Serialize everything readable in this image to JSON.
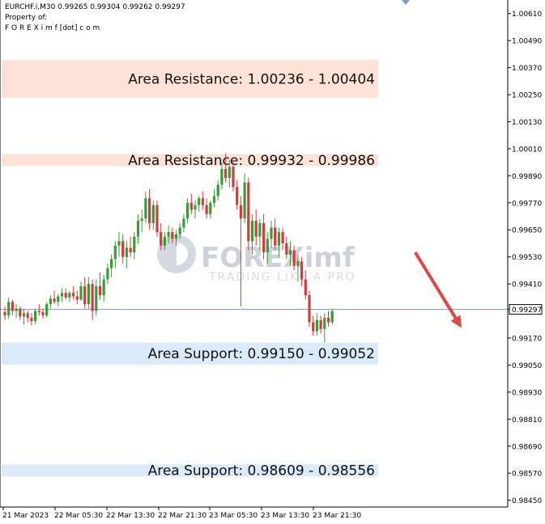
{
  "header": {
    "symbol_line": "EURCHF.i,M30  0.99265 0.99304 0.99262 0.99297",
    "property_line": "Property of:",
    "brand_line": "F O R E X i m f [dot] c o m"
  },
  "watermark": {
    "brand": "FOREXimf",
    "tagline": "TRADING LIKE A PRO"
  },
  "colors": {
    "bull": "#3a9b3a",
    "bear": "#d23c3c",
    "resistance_zone": "#fde2d7",
    "support_zone": "#dbeaf8",
    "current_price_line": "#7f96b2",
    "arrow": "#e04848"
  },
  "chart_data": {
    "type": "candlestick",
    "symbol": "EURCHF.i",
    "timeframe": "M30",
    "ylim": [
      0.9842,
      1.0067
    ],
    "y_ticks": [
      "1.00610",
      "1.00490",
      "1.00370",
      "1.00250",
      "1.00130",
      "1.00010",
      "0.99890",
      "0.99770",
      "0.99650",
      "0.99530",
      "0.99410",
      "0.99297",
      "0.99170",
      "0.99050",
      "0.98930",
      "0.98810",
      "0.98690",
      "0.98570",
      "0.98450"
    ],
    "x_ticks": [
      "21 Mar 2023",
      "22 Mar 05:30",
      "22 Mar 13:30",
      "22 Mar 21:30",
      "23 Mar 05:30",
      "23 Mar 13:30",
      "23 Mar 21:30"
    ],
    "current_price": 0.99297,
    "current_price_label": "0.99297",
    "zones": [
      {
        "type": "resistance",
        "label": "Area Resistance: 1.00236 - 1.00404",
        "low": 1.00236,
        "high": 1.00404
      },
      {
        "type": "resistance",
        "label": "Area Resistance: 0.99932 - 0.99986",
        "low": 0.99932,
        "high": 0.99986
      },
      {
        "type": "support",
        "label": "Area Support: 0.99150 - 0.99052",
        "low": 0.99052,
        "high": 0.9915
      },
      {
        "type": "support",
        "label": "Area Support: 0.98609 - 0.98556",
        "low": 0.98556,
        "high": 0.98609
      }
    ],
    "forecast_arrow": {
      "from": {
        "bar": 108,
        "price": 0.99545
      },
      "to": {
        "bar": 120,
        "price": 0.99215
      }
    },
    "candles": [
      [
        0.99285,
        0.9931,
        0.9925,
        0.9927
      ],
      [
        0.9927,
        0.9935,
        0.99255,
        0.9933
      ],
      [
        0.9933,
        0.9934,
        0.9927,
        0.9929
      ],
      [
        0.9929,
        0.9932,
        0.9926,
        0.993
      ],
      [
        0.993,
        0.9931,
        0.9925,
        0.99265
      ],
      [
        0.99265,
        0.993,
        0.9923,
        0.9928
      ],
      [
        0.9928,
        0.9929,
        0.9924,
        0.9926
      ],
      [
        0.9926,
        0.9928,
        0.99225,
        0.99245
      ],
      [
        0.99245,
        0.993,
        0.9923,
        0.9929
      ],
      [
        0.9929,
        0.9932,
        0.9927,
        0.99285
      ],
      [
        0.99285,
        0.993,
        0.99255,
        0.9927
      ],
      [
        0.9927,
        0.9933,
        0.9926,
        0.9932
      ],
      [
        0.9932,
        0.9936,
        0.993,
        0.99345
      ],
      [
        0.99345,
        0.9938,
        0.9932,
        0.9933
      ],
      [
        0.9933,
        0.99365,
        0.9931,
        0.99355
      ],
      [
        0.99355,
        0.9939,
        0.9933,
        0.9937
      ],
      [
        0.9937,
        0.9939,
        0.9934,
        0.9935
      ],
      [
        0.9935,
        0.9938,
        0.9933,
        0.9937
      ],
      [
        0.9937,
        0.994,
        0.9934,
        0.99355
      ],
      [
        0.99355,
        0.9938,
        0.9932,
        0.9934
      ],
      [
        0.9934,
        0.9942,
        0.99335,
        0.994
      ],
      [
        0.994,
        0.9944,
        0.993,
        0.9932
      ],
      [
        0.9932,
        0.9944,
        0.993,
        0.9941
      ],
      [
        0.9941,
        0.9943,
        0.9925,
        0.9929
      ],
      [
        0.9929,
        0.9943,
        0.9927,
        0.994
      ],
      [
        0.994,
        0.9946,
        0.9934,
        0.9936
      ],
      [
        0.9936,
        0.9945,
        0.9933,
        0.9943
      ],
      [
        0.9943,
        0.995,
        0.9941,
        0.9948
      ],
      [
        0.9948,
        0.9954,
        0.9944,
        0.9952
      ],
      [
        0.9952,
        0.996,
        0.9948,
        0.9958
      ],
      [
        0.9958,
        0.9964,
        0.9953,
        0.996
      ],
      [
        0.996,
        0.9963,
        0.995,
        0.9953
      ],
      [
        0.9953,
        0.996,
        0.9948,
        0.9957
      ],
      [
        0.9957,
        0.9962,
        0.9953,
        0.9955
      ],
      [
        0.9955,
        0.9964,
        0.9952,
        0.9962
      ],
      [
        0.9962,
        0.9972,
        0.9959,
        0.9969
      ],
      [
        0.9969,
        0.9974,
        0.9964,
        0.997
      ],
      [
        0.997,
        0.9982,
        0.9968,
        0.9979
      ],
      [
        0.9979,
        0.9983,
        0.9965,
        0.9968
      ],
      [
        0.9968,
        0.9978,
        0.9965,
        0.9976
      ],
      [
        0.9976,
        0.9978,
        0.9962,
        0.9964
      ],
      [
        0.9964,
        0.9968,
        0.9956,
        0.9958
      ],
      [
        0.9958,
        0.9964,
        0.9956,
        0.9962
      ],
      [
        0.9962,
        0.9967,
        0.9959,
        0.9964
      ],
      [
        0.9964,
        0.9966,
        0.9959,
        0.9961
      ],
      [
        0.9961,
        0.9965,
        0.9958,
        0.9963
      ],
      [
        0.9963,
        0.9968,
        0.9961,
        0.9966
      ],
      [
        0.9966,
        0.9972,
        0.9964,
        0.997
      ],
      [
        0.997,
        0.9979,
        0.9968,
        0.9977
      ],
      [
        0.9977,
        0.9981,
        0.9972,
        0.9974
      ],
      [
        0.9974,
        0.9978,
        0.997,
        0.9976
      ],
      [
        0.9976,
        0.998,
        0.9973,
        0.9979
      ],
      [
        0.9979,
        0.9982,
        0.9974,
        0.9976
      ],
      [
        0.9976,
        0.9979,
        0.997,
        0.9972
      ],
      [
        0.9972,
        0.9978,
        0.997,
        0.9977
      ],
      [
        0.9977,
        0.9983,
        0.9975,
        0.998
      ],
      [
        0.998,
        0.9987,
        0.9978,
        0.9985
      ],
      [
        0.9985,
        0.9995,
        0.9983,
        0.9992
      ],
      [
        0.9992,
        0.9999,
        0.9986,
        0.9988
      ],
      [
        0.9988,
        0.9996,
        0.9984,
        0.9993
      ],
      [
        0.9993,
        0.9996,
        0.9982,
        0.9984
      ],
      [
        0.9984,
        0.9987,
        0.9974,
        0.9976
      ],
      [
        0.9976,
        0.998,
        0.9931,
        0.997
      ],
      [
        0.997,
        0.999,
        0.9968,
        0.9986
      ],
      [
        0.9986,
        0.9988,
        0.9956,
        0.996
      ],
      [
        0.996,
        0.9972,
        0.9954,
        0.9969
      ],
      [
        0.9969,
        0.9974,
        0.9958,
        0.9962
      ],
      [
        0.9962,
        0.997,
        0.9956,
        0.9968
      ],
      [
        0.9968,
        0.9972,
        0.9952,
        0.9955
      ],
      [
        0.9955,
        0.9964,
        0.995,
        0.9961
      ],
      [
        0.9961,
        0.9969,
        0.9957,
        0.9966
      ],
      [
        0.9966,
        0.997,
        0.9956,
        0.9958
      ],
      [
        0.9958,
        0.9966,
        0.9953,
        0.9964
      ],
      [
        0.9964,
        0.9966,
        0.9956,
        0.9959
      ],
      [
        0.9959,
        0.9962,
        0.9952,
        0.9954
      ],
      [
        0.9954,
        0.996,
        0.9949,
        0.9956
      ],
      [
        0.9956,
        0.9958,
        0.9947,
        0.9949
      ],
      [
        0.9949,
        0.9954,
        0.9942,
        0.9951
      ],
      [
        0.9951,
        0.9953,
        0.994,
        0.9943
      ],
      [
        0.9943,
        0.9947,
        0.9934,
        0.9936
      ],
      [
        0.9936,
        0.9938,
        0.9922,
        0.9924
      ],
      [
        0.9924,
        0.9927,
        0.9918,
        0.992
      ],
      [
        0.992,
        0.9928,
        0.9918,
        0.9925
      ],
      [
        0.9925,
        0.9927,
        0.9919,
        0.9921
      ],
      [
        0.9921,
        0.9928,
        0.9915,
        0.9926
      ],
      [
        0.9926,
        0.9929,
        0.9922,
        0.9924
      ],
      [
        0.9924,
        0.993,
        0.9923,
        0.9929
      ]
    ]
  }
}
